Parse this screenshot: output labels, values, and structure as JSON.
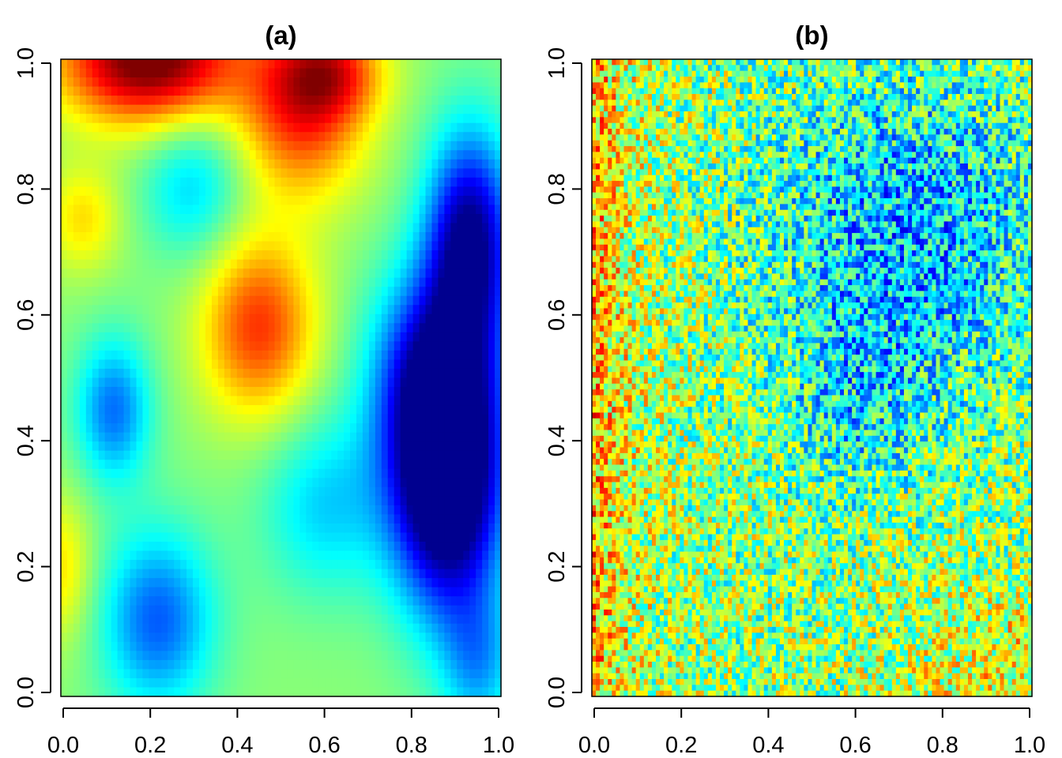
{
  "chart_data": [
    {
      "type": "heatmap",
      "title": "(a)",
      "xlabel": "",
      "ylabel": "",
      "xlim": [
        0.0,
        1.0
      ],
      "ylim": [
        0.0,
        1.0
      ],
      "x_ticks": [
        "0.0",
        "0.2",
        "0.4",
        "0.6",
        "0.8",
        "1.0"
      ],
      "y_ticks": [
        "0.0",
        "0.2",
        "0.4",
        "0.6",
        "0.8",
        "1.0"
      ],
      "colormap": [
        "#00008f",
        "#0000ff",
        "#0080ff",
        "#00ffff",
        "#80ff80",
        "#ffff00",
        "#ff8000",
        "#ff0000",
        "#800000"
      ],
      "description_of_field": "smooth spatial random field; high values along top edge and centre column (0.4-0.6), low values on the right side (x 0.8-1.0, y 0.25-0.8)",
      "hotspots": [
        {
          "x": 0.2,
          "y": 0.98,
          "value": 1.0
        },
        {
          "x": 0.55,
          "y": 0.92,
          "value": 0.75
        },
        {
          "x": 0.45,
          "y": 0.58,
          "value": 0.72
        },
        {
          "x": 0.88,
          "y": 0.3,
          "value": 0.0
        },
        {
          "x": 0.92,
          "y": 0.72,
          "value": 0.12
        },
        {
          "x": 0.12,
          "y": 0.45,
          "value": 0.3
        },
        {
          "x": 0.22,
          "y": 0.12,
          "value": 0.25
        }
      ],
      "grid": false,
      "legend": "none"
    },
    {
      "type": "heatmap",
      "title": "(b)",
      "xlabel": "",
      "ylabel": "",
      "xlim": [
        0.0,
        1.0
      ],
      "ylim": [
        0.0,
        1.0
      ],
      "x_ticks": [
        "0.0",
        "0.2",
        "0.4",
        "0.6",
        "0.8",
        "1.0"
      ],
      "y_ticks": [
        "0.0",
        "0.2",
        "0.4",
        "0.6",
        "0.8",
        "1.0"
      ],
      "colormap": [
        "#00008f",
        "#0000ff",
        "#0080ff",
        "#00ffff",
        "#80ff80",
        "#ffff00",
        "#ff8000",
        "#ff0000",
        "#800000"
      ],
      "description_of_field": "noisy pixel field; high values at left edge and bottom-right corner, low values in upper-right region",
      "grid": false,
      "legend": "none"
    }
  ]
}
